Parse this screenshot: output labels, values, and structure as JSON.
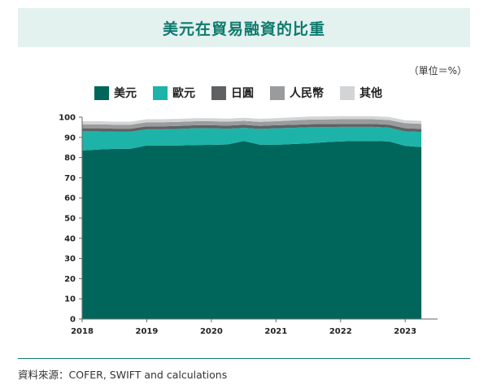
{
  "title": "美元在貿易融資的比重",
  "unit_note": "（單位＝%）",
  "source": "資料來源：COFER, SWIFT and calculations",
  "colors": {
    "title_bg": "#e3f1ef",
    "title_text": "#0e7a6d",
    "divider": "#0e7a6d"
  },
  "chart_data": {
    "type": "area",
    "stacked": true,
    "x": [
      2018.0,
      2018.25,
      2018.5,
      2018.75,
      2019.0,
      2019.25,
      2019.5,
      2019.75,
      2020.0,
      2020.25,
      2020.5,
      2020.75,
      2021.0,
      2021.25,
      2021.5,
      2021.75,
      2022.0,
      2022.25,
      2022.5,
      2022.75,
      2023.0,
      2023.25
    ],
    "x_ticks": [
      "2018",
      "2019",
      "2020",
      "2021",
      "2022",
      "2023"
    ],
    "x_tick_values": [
      2018,
      2019,
      2020,
      2021,
      2022,
      2023
    ],
    "xlim": [
      2018.0,
      2023.35
    ],
    "ylim": [
      0,
      100
    ],
    "y_ticks": [
      0,
      10,
      20,
      30,
      40,
      50,
      60,
      70,
      80,
      90,
      100
    ],
    "legend_position": "top",
    "grid": false,
    "series": [
      {
        "name": "美元",
        "color": "#00665c",
        "values": [
          83.5,
          84.0,
          84.3,
          84.4,
          86.0,
          86.0,
          86.0,
          86.2,
          86.3,
          86.5,
          88.2,
          86.4,
          86.3,
          86.7,
          87.0,
          87.6,
          88.0,
          88.2,
          88.2,
          88.0,
          85.8,
          85.2
        ]
      },
      {
        "name": "歐元",
        "color": "#1db3a8",
        "values": [
          9.5,
          9.0,
          8.5,
          8.4,
          8.0,
          8.0,
          8.2,
          8.3,
          8.2,
          7.8,
          6.5,
          7.8,
          8.2,
          8.0,
          8.0,
          7.5,
          7.2,
          7.0,
          7.0,
          6.8,
          7.2,
          7.5
        ]
      },
      {
        "name": "日圓",
        "color": "#5f6163",
        "values": [
          1.5,
          1.5,
          1.5,
          1.5,
          1.5,
          1.5,
          1.5,
          1.5,
          1.5,
          1.5,
          1.5,
          1.5,
          1.5,
          1.5,
          1.5,
          1.5,
          1.5,
          1.5,
          1.5,
          1.5,
          1.5,
          1.5
        ]
      },
      {
        "name": "人民幣",
        "color": "#9a9b9d",
        "values": [
          2.0,
          2.0,
          2.0,
          2.0,
          2.0,
          2.0,
          2.0,
          2.0,
          2.0,
          2.0,
          2.0,
          2.0,
          2.0,
          2.2,
          2.3,
          2.3,
          2.3,
          2.3,
          2.3,
          2.3,
          2.5,
          2.5
        ]
      },
      {
        "name": "其他",
        "color": "#d3d4d5",
        "values": [
          1.5,
          1.5,
          1.5,
          1.5,
          1.5,
          1.5,
          1.5,
          1.5,
          1.5,
          1.5,
          1.5,
          1.5,
          1.5,
          1.5,
          1.5,
          1.5,
          1.5,
          1.5,
          1.5,
          1.5,
          1.5,
          1.5
        ]
      }
    ]
  }
}
